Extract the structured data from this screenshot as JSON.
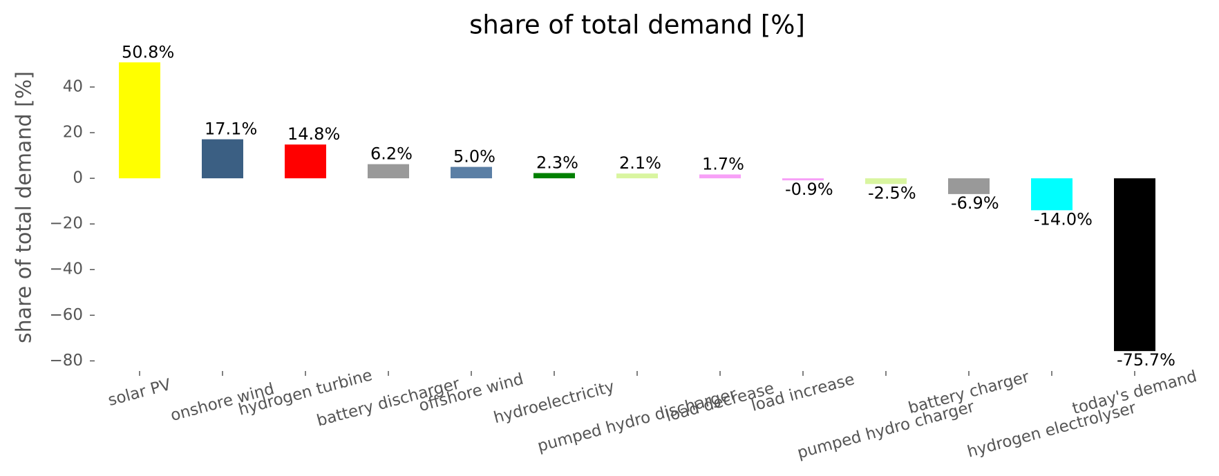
{
  "chart_data": {
    "type": "bar",
    "title": "share of total demand [%]",
    "y_label": "share of total demand [%]",
    "categories": [
      "solar PV",
      "onshore wind",
      "hydrogen turbine",
      "battery discharger",
      "offshore wind",
      "hydroelectricity",
      "pumped hydro discharger",
      "load decrease",
      "load increase",
      "pumped hydro charger",
      "battery charger",
      "hydrogen electrolyser",
      "today's demand"
    ],
    "values": [
      50.8,
      17.1,
      14.8,
      6.2,
      5.0,
      2.3,
      2.1,
      1.7,
      -0.9,
      -2.5,
      -6.9,
      -14.0,
      -75.7
    ],
    "value_labels": [
      "50.8%",
      "17.1%",
      "14.8%",
      "6.2%",
      "5.0%",
      "2.3%",
      "2.1%",
      "1.7%",
      "-0.9%",
      "-2.5%",
      "-6.9%",
      "-14.0%",
      "-75.7%"
    ],
    "colors": [
      "#ffff00",
      "#3b5f83",
      "#ff0000",
      "#999999",
      "#5b7fa5",
      "#008000",
      "#d9f5a0",
      "#f7a0f7",
      "#f7a0f7",
      "#d9f5a0",
      "#999999",
      "#00ffff",
      "#000000"
    ],
    "ylim": [
      -82,
      53
    ],
    "yticks": [
      {
        "value": -80,
        "label": "−80"
      },
      {
        "value": -60,
        "label": "−60"
      },
      {
        "value": -40,
        "label": "−40"
      },
      {
        "value": -20,
        "label": "−20"
      },
      0,
      20,
      40
    ],
    "grid": false
  }
}
